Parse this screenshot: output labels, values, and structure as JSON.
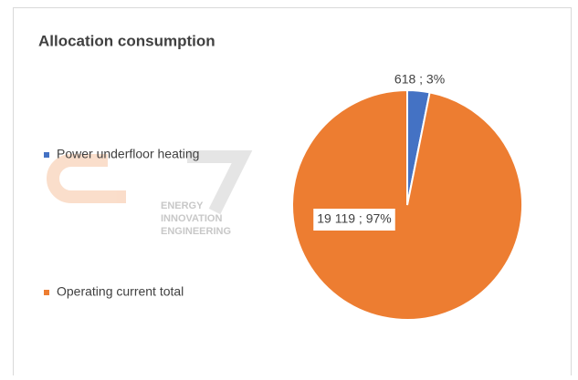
{
  "chart_data": {
    "type": "pie",
    "title": "Allocation consumption",
    "categories": [
      "Power underfloor heating",
      "Operating current total"
    ],
    "values": [
      618,
      19119
    ],
    "value_labels": [
      "618 ; 3%",
      "19 119 ; 97%"
    ],
    "colors": [
      "#4472c4",
      "#ed7d31"
    ],
    "legend": "left",
    "watermark": [
      "ENERGY",
      "INNOVATION",
      "ENGINEERING"
    ]
  }
}
